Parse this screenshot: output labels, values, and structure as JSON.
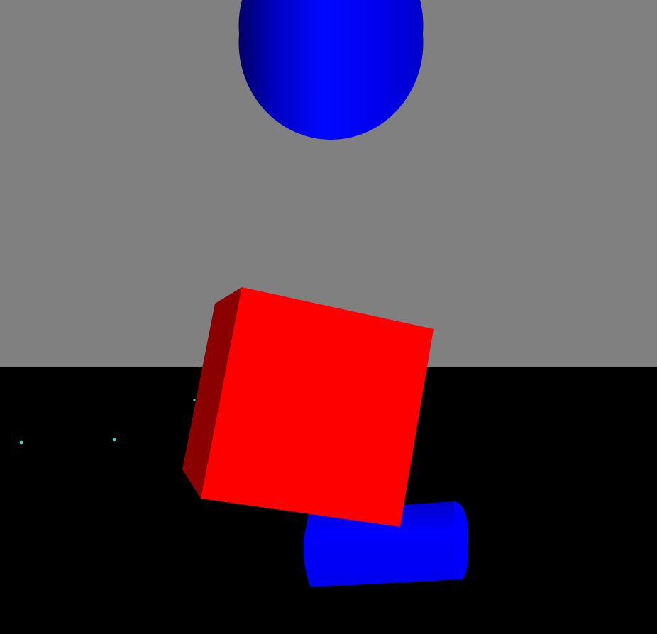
{
  "scene": {
    "sky_color": "#808080",
    "ground_color": "#000000",
    "objects": [
      {
        "kind": "sphere",
        "color": "#0000ff"
      },
      {
        "kind": "cube",
        "color": "#ff0000"
      },
      {
        "kind": "cylinder",
        "color": "#0000ff"
      },
      {
        "kind": "marker",
        "color": "#33dddd"
      },
      {
        "kind": "marker",
        "color": "#33dddd"
      },
      {
        "kind": "marker",
        "color": "#33dddd"
      }
    ]
  }
}
